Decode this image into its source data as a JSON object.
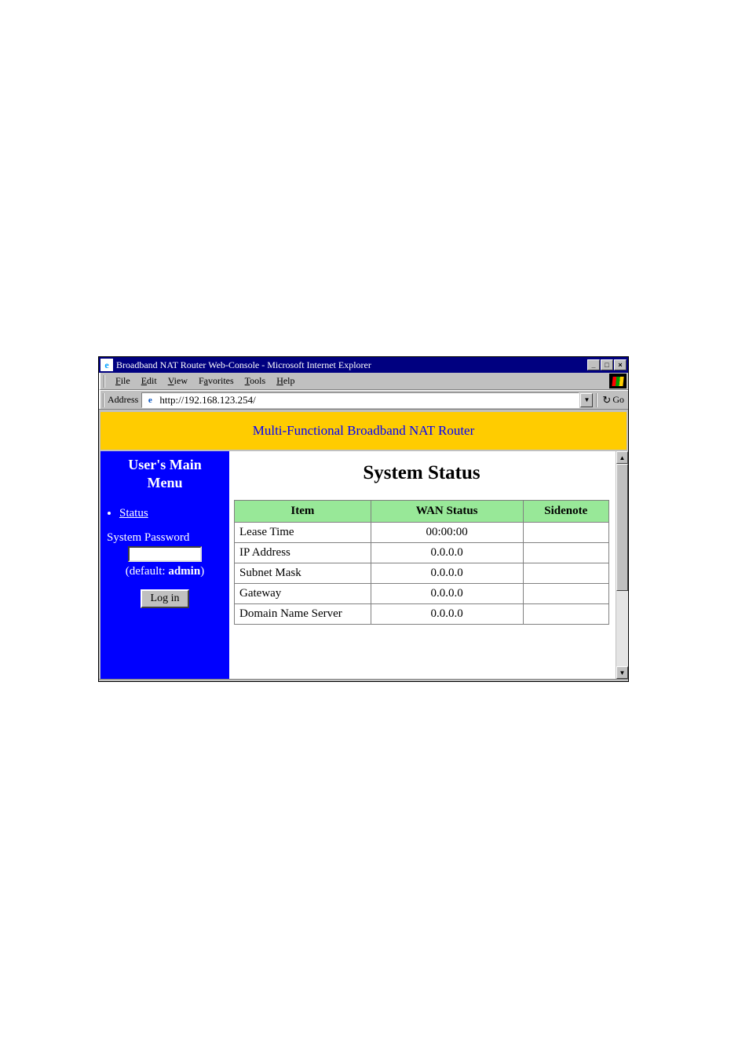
{
  "window": {
    "title": "Broadband NAT Router Web-Console - Microsoft Internet Explorer",
    "min_label": "_",
    "max_label": "□",
    "close_label": "×"
  },
  "menubar": {
    "items": [
      {
        "pre": "",
        "ul": "F",
        "post": "ile"
      },
      {
        "pre": "",
        "ul": "E",
        "post": "dit"
      },
      {
        "pre": "",
        "ul": "V",
        "post": "iew"
      },
      {
        "pre": "F",
        "ul": "a",
        "post": "vorites"
      },
      {
        "pre": "",
        "ul": "T",
        "post": "ools"
      },
      {
        "pre": "",
        "ul": "H",
        "post": "elp"
      }
    ]
  },
  "addressbar": {
    "label": "Address",
    "url": "http://192.168.123.254/",
    "go_label": "Go",
    "dropdown_glyph": "▼",
    "go_arrow": "↻"
  },
  "banner": {
    "text": "Multi-Functional Broadband NAT Router",
    "bg_color": "#ffcc00",
    "text_color": "#0000ff"
  },
  "sidebar": {
    "title_line1": "User's Main",
    "title_line2": "Menu",
    "status_link": "Status",
    "password_label": "System Password",
    "password_value": "",
    "default_prefix": "(default: ",
    "default_value": "admin",
    "default_suffix": ")",
    "login_label": "Log in",
    "bg_color": "#0000ff"
  },
  "content": {
    "heading": "System Status",
    "table": {
      "header_bg": "#98e898",
      "columns": [
        "Item",
        "WAN Status",
        "Sidenote"
      ],
      "rows": [
        {
          "item": "Lease Time",
          "wan": "00:00:00",
          "side": ""
        },
        {
          "item": "IP Address",
          "wan": "0.0.0.0",
          "side": ""
        },
        {
          "item": "Subnet Mask",
          "wan": "0.0.0.0",
          "side": ""
        },
        {
          "item": "Gateway",
          "wan": "0.0.0.0",
          "side": ""
        },
        {
          "item": "Domain Name Server",
          "wan": "0.0.0.0",
          "side": ""
        }
      ]
    }
  },
  "scrollbar": {
    "up_glyph": "▲",
    "down_glyph": "▼"
  }
}
